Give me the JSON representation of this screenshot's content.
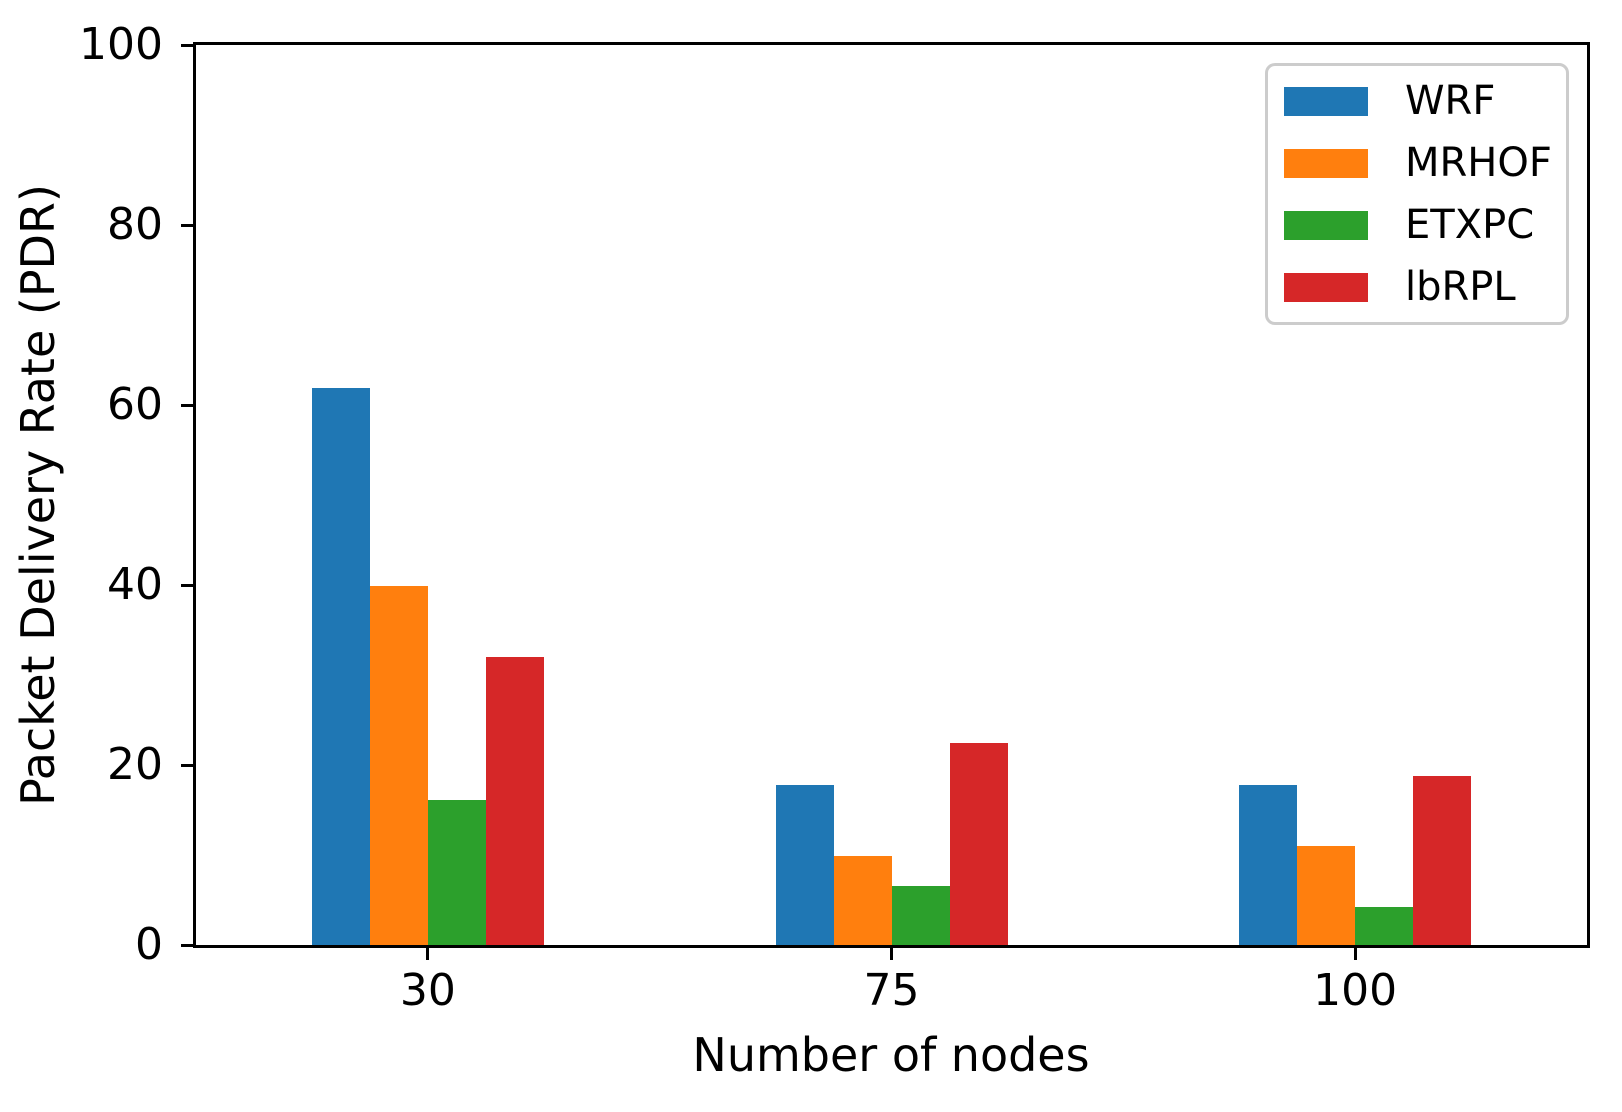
{
  "chart_data": {
    "type": "bar",
    "title": "",
    "xlabel": "Number of nodes",
    "ylabel": "Packet Delivery Rate (PDR)",
    "categories": [
      "30",
      "75",
      "100"
    ],
    "series": [
      {
        "name": "WRF",
        "color": "#1f77b4",
        "values": [
          61.9,
          17.8,
          17.8
        ]
      },
      {
        "name": "MRHOF",
        "color": "#ff7f0e",
        "values": [
          39.9,
          9.9,
          11.0
        ]
      },
      {
        "name": "ETXPC",
        "color": "#2ca02c",
        "values": [
          16.1,
          6.6,
          4.2
        ]
      },
      {
        "name": "lbRPL",
        "color": "#d62728",
        "values": [
          32.0,
          22.4,
          18.8
        ]
      }
    ],
    "ylim": [
      0,
      100
    ],
    "yticks": [
      0,
      20,
      40,
      60,
      80,
      100
    ],
    "grid": false,
    "legend_position": "upper right",
    "axis_color": "#000000",
    "legend_border_color": "#cccccc",
    "background_color": "#ffffff"
  }
}
